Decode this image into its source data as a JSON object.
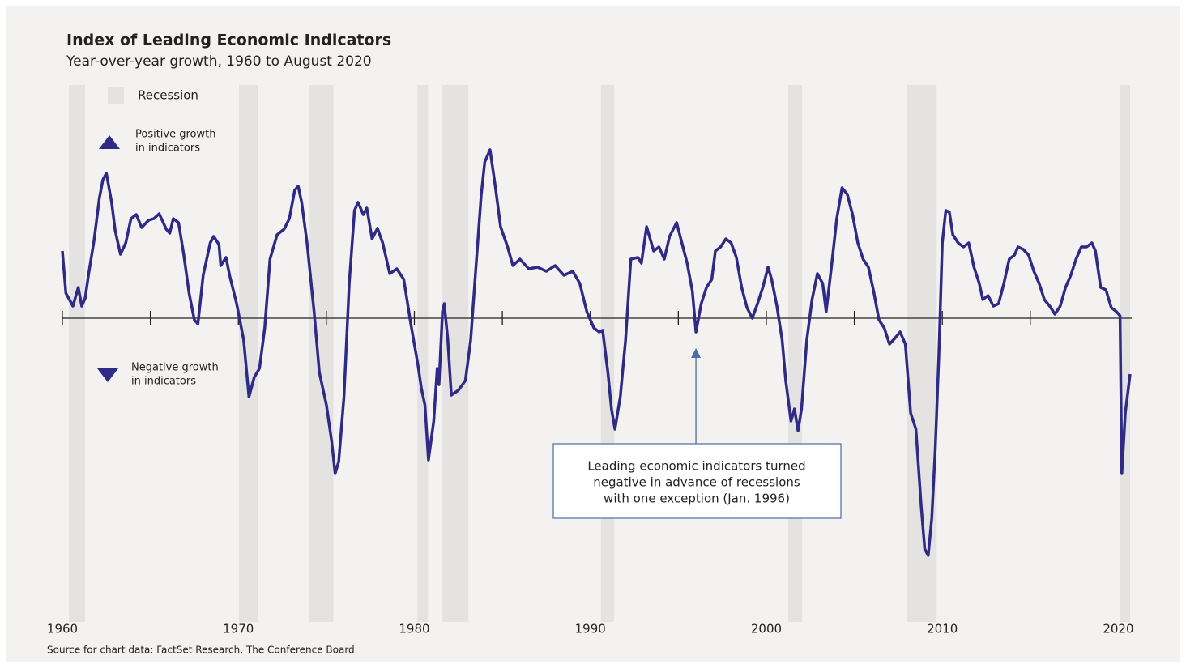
{
  "chart_data": {
    "type": "line",
    "title": "Index of Leading Economic Indicators",
    "subtitle": "Year-over-year growth, 1960 to August 2020",
    "source": "Source for chart data: FactSet Research, The Conference Board",
    "legend": {
      "recession": "Recession",
      "positive": [
        "Positive growth",
        "in indicators"
      ],
      "negative": [
        "Negative growth",
        "in indicators"
      ]
    },
    "annotation": [
      "Leading economic indicators turned",
      "negative in advance of recessions",
      "with one exception (Jan. 1996)"
    ],
    "annotation_x": 1996.0,
    "recessions": [
      [
        1960.37,
        1961.29
      ],
      [
        1970.04,
        1971.1
      ],
      [
        1974.0,
        1975.4
      ],
      [
        1980.17,
        1980.77
      ],
      [
        1981.6,
        1983.07
      ],
      [
        1990.6,
        1991.35
      ],
      [
        2001.25,
        2002.03
      ],
      [
        2008.0,
        2009.68
      ],
      [
        2020.08,
        2020.67
      ]
    ],
    "recession_color": "#e4e3e1",
    "xlim": [
      1960,
      2020.67
    ],
    "ylim": [
      -18,
      14
    ],
    "xticks": [
      1960,
      1970,
      1980,
      1990,
      2000,
      2010,
      2020
    ],
    "xminor_ticks": [
      1960,
      1965,
      1970,
      1975,
      1980,
      1985,
      1990,
      1995,
      2000,
      2005,
      2010,
      2015
    ],
    "series": [
      {
        "color": "#2e2a85",
        "x": [
          1960.0,
          1960.2,
          1960.4,
          1960.6,
          1960.9,
          1961.1,
          1961.3,
          1961.5,
          1961.8,
          1962.1,
          1962.3,
          1962.5,
          1962.8,
          1963.0,
          1963.3,
          1963.6,
          1963.9,
          1964.2,
          1964.5,
          1964.9,
          1965.2,
          1965.5,
          1965.9,
          1966.1,
          1966.3,
          1966.6,
          1966.9,
          1967.2,
          1967.5,
          1967.7,
          1968.0,
          1968.4,
          1968.6,
          1968.9,
          1969.0,
          1969.3,
          1969.5,
          1969.9,
          1970.3,
          1970.6,
          1970.9,
          1971.2,
          1971.5,
          1971.8,
          1972.2,
          1972.6,
          1972.9,
          1973.2,
          1973.4,
          1973.6,
          1973.9,
          1974.3,
          1974.6,
          1975.0,
          1975.3,
          1975.5,
          1975.7,
          1976.0,
          1976.3,
          1976.6,
          1976.8,
          1977.1,
          1977.3,
          1977.6,
          1977.9,
          1978.2,
          1978.6,
          1979.0,
          1979.4,
          1979.8,
          1980.2,
          1980.4,
          1980.6,
          1980.8,
          1981.1,
          1981.3,
          1981.4,
          1981.6,
          1981.7,
          1981.9,
          1982.1,
          1982.5,
          1982.9,
          1983.2,
          1983.5,
          1983.8,
          1984.0,
          1984.3,
          1984.6,
          1984.9,
          1985.3,
          1985.6,
          1986.0,
          1986.5,
          1987.0,
          1987.5,
          1988.0,
          1988.5,
          1989.0,
          1989.4,
          1989.8,
          1990.2,
          1990.5,
          1990.7,
          1991.0,
          1991.2,
          1991.4,
          1991.7,
          1992.0,
          1992.3,
          1992.7,
          1992.9,
          1993.2,
          1993.6,
          1993.9,
          1994.2,
          1994.5,
          1994.9,
          1995.2,
          1995.5,
          1995.8,
          1996.0,
          1996.3,
          1996.6,
          1996.9,
          1997.1,
          1997.4,
          1997.7,
          1998.0,
          1998.3,
          1998.6,
          1998.9,
          1999.2,
          1999.5,
          1999.8,
          2000.1,
          2000.3,
          2000.6,
          2000.9,
          2001.1,
          2001.4,
          2001.6,
          2001.8,
          2002.0,
          2002.3,
          2002.6,
          2002.9,
          2003.2,
          2003.4,
          2003.7,
          2004.0,
          2004.3,
          2004.6,
          2004.9,
          2005.2,
          2005.5,
          2005.8,
          2006.1,
          2006.4,
          2006.7,
          2007.0,
          2007.3,
          2007.6,
          2007.9,
          2008.2,
          2008.5,
          2008.8,
          2009.0,
          2009.2,
          2009.4,
          2009.6,
          2009.8,
          2010.0,
          2010.2,
          2010.4,
          2010.6,
          2010.9,
          2011.2,
          2011.5,
          2011.8,
          2012.1,
          2012.3,
          2012.6,
          2012.9,
          2013.2,
          2013.5,
          2013.8,
          2014.1,
          2014.3,
          2014.6,
          2014.9,
          2015.2,
          2015.5,
          2015.8,
          2016.1,
          2016.4,
          2016.7,
          2017.0,
          2017.3,
          2017.6,
          2017.9,
          2018.2,
          2018.5,
          2018.7,
          2019.0,
          2019.3,
          2019.6,
          2019.9,
          2020.1,
          2020.2,
          2020.4,
          2020.67
        ],
        "values": [
          4.15,
          1.55,
          1.15,
          0.75,
          1.9,
          0.75,
          1.25,
          2.8,
          4.8,
          7.4,
          8.55,
          8.95,
          7.15,
          5.4,
          3.95,
          4.65,
          6.15,
          6.4,
          5.6,
          6.05,
          6.15,
          6.45,
          5.5,
          5.25,
          6.15,
          5.9,
          3.9,
          1.55,
          -0.1,
          -0.35,
          2.65,
          4.65,
          5.05,
          4.55,
          3.25,
          3.75,
          2.65,
          0.9,
          -1.35,
          -4.85,
          -3.65,
          -3.1,
          -0.6,
          3.65,
          5.15,
          5.5,
          6.15,
          7.9,
          8.15,
          7.15,
          4.65,
          0.4,
          -3.35,
          -5.35,
          -7.6,
          -9.6,
          -8.85,
          -4.85,
          2.15,
          6.65,
          7.15,
          6.4,
          6.8,
          4.9,
          5.55,
          4.65,
          2.75,
          3.05,
          2.4,
          -0.35,
          -2.85,
          -4.35,
          -5.35,
          -8.75,
          -6.35,
          -3.1,
          -4.1,
          0.4,
          0.9,
          -1.35,
          -4.75,
          -4.45,
          -3.85,
          -1.35,
          3.15,
          7.6,
          9.65,
          10.4,
          8.15,
          5.65,
          4.4,
          3.25,
          3.65,
          3.05,
          3.15,
          2.9,
          3.25,
          2.65,
          2.9,
          2.15,
          0.4,
          -0.6,
          -0.85,
          -0.75,
          -3.35,
          -5.6,
          -6.85,
          -4.85,
          -1.35,
          3.65,
          3.75,
          3.4,
          5.65,
          4.15,
          4.4,
          3.65,
          5.05,
          5.9,
          4.65,
          3.4,
          1.65,
          -0.85,
          0.9,
          1.9,
          2.4,
          4.15,
          4.4,
          4.9,
          4.65,
          3.75,
          1.9,
          0.65,
          0,
          0.9,
          1.9,
          3.15,
          2.4,
          0.75,
          -1.35,
          -3.85,
          -6.35,
          -5.6,
          -6.95,
          -5.6,
          -1.35,
          1.15,
          2.75,
          2.15,
          0.4,
          3.15,
          6.15,
          8.05,
          7.65,
          6.4,
          4.65,
          3.65,
          3.15,
          1.65,
          -0.1,
          -0.6,
          -1.6,
          -1.25,
          -0.85,
          -1.6,
          -5.85,
          -6.85,
          -11.6,
          -14.25,
          -14.65,
          -12.35,
          -8.1,
          -2.35,
          4.65,
          6.65,
          6.55,
          5.15,
          4.65,
          4.4,
          4.65,
          3.15,
          2.15,
          1.15,
          1.4,
          0.75,
          0.9,
          2.15,
          3.65,
          3.9,
          4.4,
          4.25,
          3.9,
          2.9,
          2.15,
          1.15,
          0.75,
          0.25,
          0.75,
          1.9,
          2.65,
          3.65,
          4.4,
          4.4,
          4.65,
          4.15,
          1.9,
          1.75,
          0.65,
          0.4,
          0.15,
          -9.6,
          -5.85,
          -3.45
        ]
      }
    ]
  }
}
